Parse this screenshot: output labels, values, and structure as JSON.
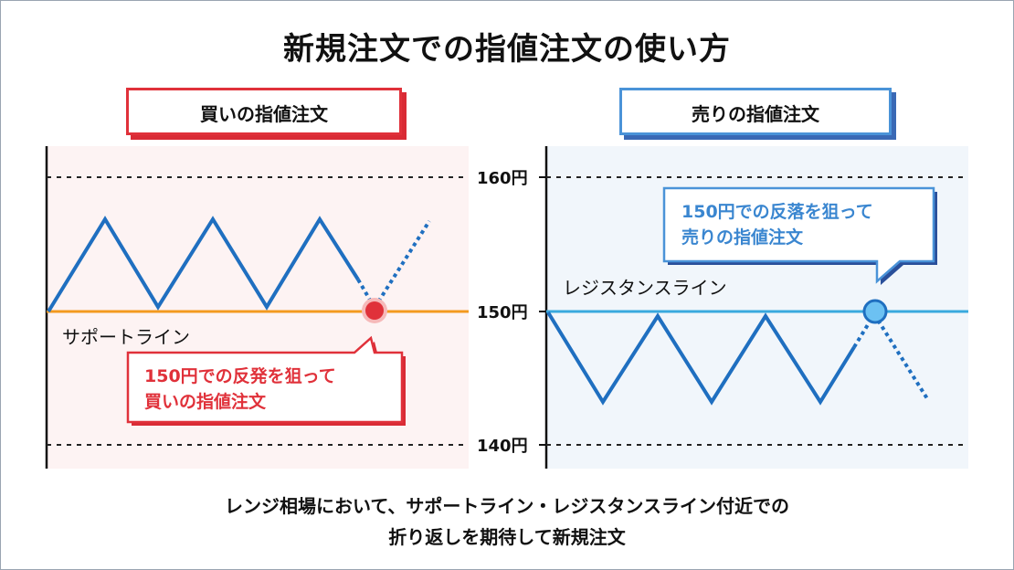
{
  "title": "新規注文での指値注文の使い方",
  "buy_panel": {
    "label": "買いの指値注文",
    "line_label": "サポートライン",
    "callout_line1": "150円での反発を狙って",
    "callout_line2": "買いの指値注文"
  },
  "sell_panel": {
    "label": "売りの指値注文",
    "line_label": "レジスタンスライン",
    "callout_line1": "150円での反落を狙って",
    "callout_line2": "売りの指値注文"
  },
  "price_axis": [
    {
      "label": "160円",
      "value": 160
    },
    {
      "label": "150円",
      "value": 150
    },
    {
      "label": "140円",
      "value": 140
    }
  ],
  "footer": {
    "line1": "レンジ相場において、サポートライン・レジスタンスライン付近での",
    "line2": "折り返しを期待して新規注文"
  },
  "colors": {
    "buy_accent": "#e0313a",
    "sell_accent": "#4a93d8",
    "price_line": "#1f6fc0",
    "support_line": "#f39a1f",
    "resistance_line": "#39a9de"
  }
}
